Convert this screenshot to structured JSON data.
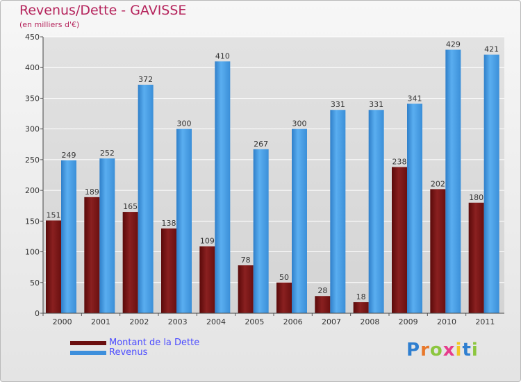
{
  "header": {
    "title": "Revenus/Dette - GAVISSE",
    "subtitle": "(en milliers d'€)"
  },
  "colors": {
    "dette": "#7a1515",
    "revenus": "#4a9ee0",
    "title": "#b5245c",
    "legend_text": "#4d4dff",
    "grid": "#ffffff",
    "axis_text": "#333333"
  },
  "legend": {
    "items": [
      {
        "label": "Montant de la Dette",
        "color": "#6b0f0f"
      },
      {
        "label": "Revenus",
        "color": "#3d8fdc"
      }
    ]
  },
  "logo": {
    "letters": [
      "P",
      "r",
      "o",
      "x",
      "i",
      "t",
      "i"
    ],
    "colors": [
      "#2f7fd0",
      "#e8782b",
      "#8cc63f",
      "#e63c8c",
      "#f3c623",
      "#2f7fd0",
      "#8cc63f"
    ]
  },
  "chart_data": {
    "type": "bar",
    "title": "Revenus/Dette - GAVISSE",
    "subtitle": "(en milliers d'€)",
    "categories": [
      "2000",
      "2001",
      "2002",
      "2003",
      "2004",
      "2005",
      "2006",
      "2007",
      "2008",
      "2009",
      "2010",
      "2011"
    ],
    "series": [
      {
        "name": "Montant de la Dette",
        "values": [
          151,
          189,
          165,
          138,
          109,
          78,
          50,
          28,
          18,
          238,
          202,
          180
        ]
      },
      {
        "name": "Revenus",
        "values": [
          249,
          252,
          372,
          300,
          410,
          267,
          300,
          331,
          331,
          341,
          429,
          421
        ]
      }
    ],
    "ylim": [
      0,
      450
    ],
    "yticks": [
      0,
      50,
      100,
      150,
      200,
      250,
      300,
      350,
      400,
      450
    ],
    "grid": true,
    "legend_position": "bottom-left"
  }
}
